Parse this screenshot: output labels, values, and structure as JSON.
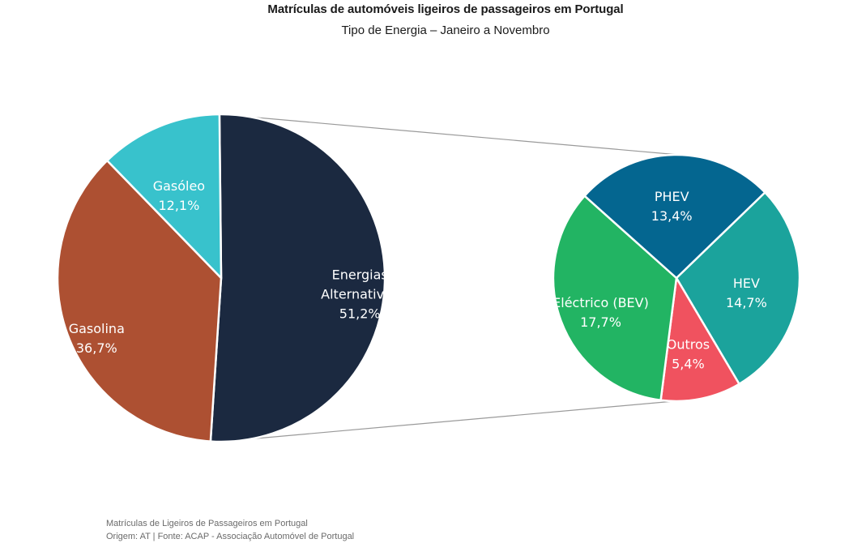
{
  "chart_data": {
    "type": "pie",
    "title": "Matrículas de automóveis ligeiros de passageiros em Portugal",
    "subtitle": "Tipo de Energia – Janeiro a Novembro",
    "main_pie": {
      "slices": [
        {
          "label": "Energias Alternativas",
          "display_lines": [
            "Energias",
            "Alternativas",
            "51,2%"
          ],
          "value": 51.2,
          "color": "#1b2940"
        },
        {
          "label": "Gasolina",
          "display_lines": [
            "Gasolina",
            "36,7%"
          ],
          "value": 36.7,
          "color": "#ad5032"
        },
        {
          "label": "Gasóleo",
          "display_lines": [
            "Gasóleo",
            "12,1%"
          ],
          "value": 12.1,
          "color": "#38c2cc"
        }
      ]
    },
    "detail_pie": {
      "slices": [
        {
          "label": "HEV",
          "display_lines": [
            "HEV",
            "14,7%"
          ],
          "value": 14.7,
          "color": "#1ba39c"
        },
        {
          "label": "Outros",
          "display_lines": [
            "Outros",
            "5,4%"
          ],
          "value": 5.4,
          "color": "#f0525f"
        },
        {
          "label": "Eléctrico (BEV)",
          "display_lines": [
            "Eléctrico (BEV)",
            "17,7%"
          ],
          "value": 17.7,
          "color": "#22b463"
        },
        {
          "label": "PHEV",
          "display_lines": [
            "PHEV",
            "13,4%"
          ],
          "value": 13.4,
          "color": "#046690"
        }
      ]
    }
  },
  "footer": {
    "line1": "Matrículas de Ligeiros de Passageiros em Portugal",
    "line2": "Origem: AT | Fonte: ACAP - Associação Automóvel de Portugal"
  }
}
